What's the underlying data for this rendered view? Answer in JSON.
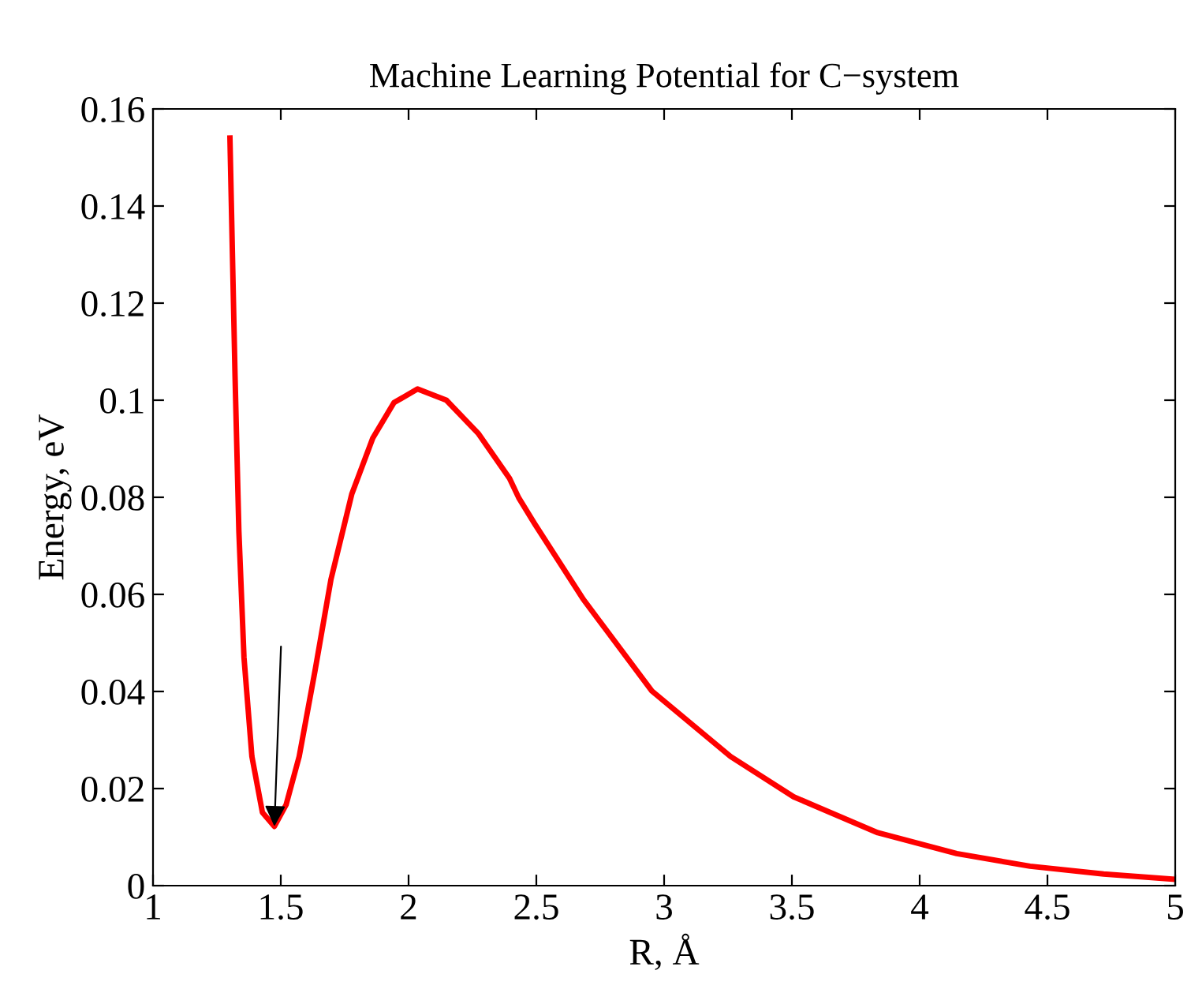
{
  "chart_data": {
    "type": "line",
    "title": "Machine Learning Potential for C−system",
    "xlabel": "R, Å",
    "ylabel": "Energy, eV",
    "xlim": [
      1,
      5
    ],
    "xticks": [
      1,
      1.5,
      2,
      2.5,
      3,
      3.5,
      4,
      4.5,
      5
    ],
    "ylim": [
      0,
      0.16
    ],
    "yticks": [
      0,
      0.02,
      0.04,
      0.06,
      0.08,
      0.1,
      0.12,
      0.14,
      0.16
    ],
    "grid": false,
    "marker": "none",
    "line_style": "solid",
    "series": [
      {
        "color": "#ff0000",
        "x": [
          1.301,
          1.321,
          1.336,
          1.356,
          1.387,
          1.428,
          1.475,
          1.521,
          1.572,
          1.634,
          1.696,
          1.778,
          1.86,
          1.943,
          2.035,
          2.148,
          2.272,
          2.395,
          2.431,
          2.494,
          2.685,
          2.952,
          3.26,
          3.507,
          3.836,
          4.145,
          4.432,
          4.72,
          5.0
        ],
        "values": [
          0.154,
          0.105,
          0.073,
          0.047,
          0.0266,
          0.0151,
          0.0122,
          0.0167,
          0.0266,
          0.0443,
          0.063,
          0.0807,
          0.0922,
          0.0995,
          0.1023,
          0.1,
          0.0932,
          0.0839,
          0.0799,
          0.0745,
          0.0589,
          0.0401,
          0.0266,
          0.0183,
          0.0109,
          0.0066,
          0.004,
          0.0024,
          0.0013
        ]
      }
    ]
  }
}
